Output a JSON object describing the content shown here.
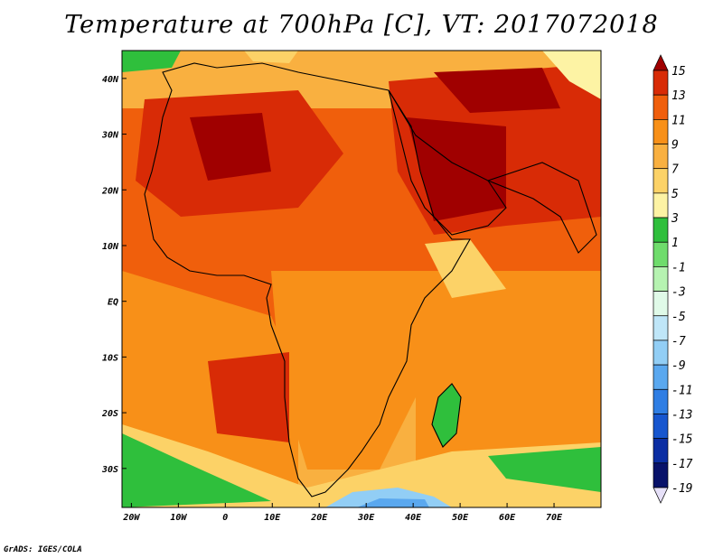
{
  "title": "Temperature at 700hPa [C], VT: 2017072018",
  "footer": "GrADS: IGES/COLA",
  "map": {
    "lon_range": [
      -22,
      80
    ],
    "lat_range": [
      -37,
      45
    ],
    "lon_ticks": [
      {
        "value": -20,
        "label": "20W"
      },
      {
        "value": -10,
        "label": "10W"
      },
      {
        "value": 0,
        "label": "0"
      },
      {
        "value": 10,
        "label": "10E"
      },
      {
        "value": 20,
        "label": "20E"
      },
      {
        "value": 30,
        "label": "30E"
      },
      {
        "value": 40,
        "label": "40E"
      },
      {
        "value": 50,
        "label": "50E"
      },
      {
        "value": 60,
        "label": "60E"
      },
      {
        "value": 70,
        "label": "70E"
      }
    ],
    "lat_ticks": [
      {
        "value": 40,
        "label": "40N"
      },
      {
        "value": 30,
        "label": "30N"
      },
      {
        "value": 20,
        "label": "20N"
      },
      {
        "value": 10,
        "label": "10N"
      },
      {
        "value": 0,
        "label": "EQ"
      },
      {
        "value": -10,
        "label": "10S"
      },
      {
        "value": -20,
        "label": "20S"
      },
      {
        "value": -30,
        "label": "30S"
      }
    ]
  },
  "colorbar": {
    "labels": [
      "15",
      "13",
      "11",
      "9",
      "7",
      "5",
      "3",
      "1",
      "-1",
      "-3",
      "-5",
      "-7",
      "-9",
      "-11",
      "-13",
      "-15",
      "-17",
      "-19"
    ],
    "colors": [
      "#a00000",
      "#d82b06",
      "#f05f0c",
      "#f89018",
      "#f9b040",
      "#fcd267",
      "#fdf3a4",
      "#2fbf3c",
      "#6fdc6c",
      "#b6f3b1",
      "#e0fae8",
      "#bfe6f8",
      "#92cef5",
      "#5aa8ef",
      "#2f7ee4",
      "#1756cf",
      "#0b2ea3",
      "#08126a",
      "#e6e0f8"
    ]
  }
}
